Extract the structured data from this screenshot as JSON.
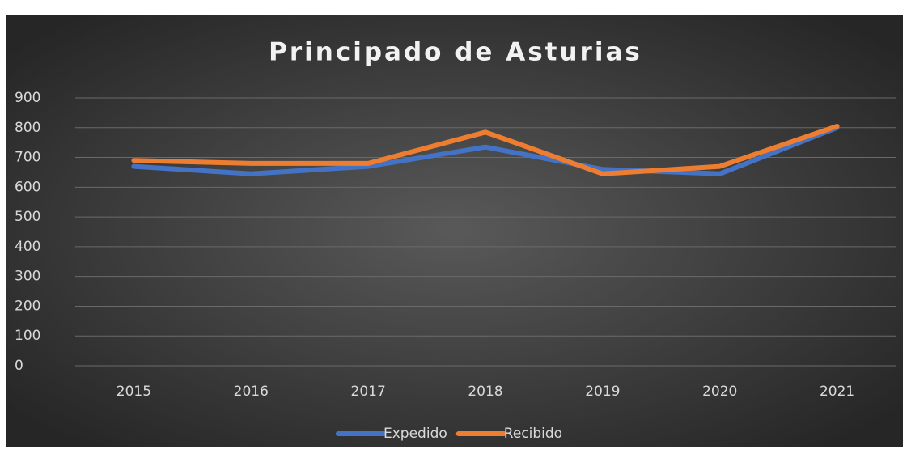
{
  "chart_data": {
    "type": "line",
    "title": "Principado de Asturias",
    "categories": [
      "2015",
      "2016",
      "2017",
      "2018",
      "2019",
      "2020",
      "2021"
    ],
    "series": [
      {
        "name": "Expedido",
        "color": "#4472c4",
        "values": [
          670,
          645,
          670,
          735,
          660,
          645,
          800
        ]
      },
      {
        "name": "Recibido",
        "color": "#ed7d31",
        "values": [
          690,
          680,
          680,
          785,
          645,
          670,
          805
        ]
      }
    ],
    "ylim": [
      0,
      900
    ],
    "yticks": [
      0,
      100,
      200,
      300,
      400,
      500,
      600,
      700,
      800,
      900
    ],
    "grid": true,
    "legend": "bottom"
  }
}
